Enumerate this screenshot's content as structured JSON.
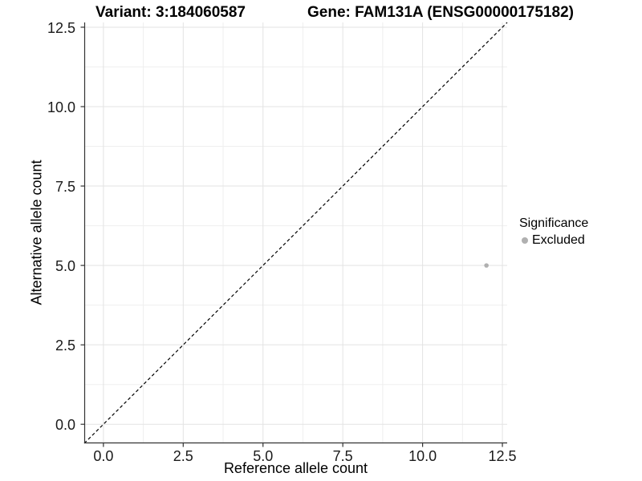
{
  "chart_data": {
    "type": "scatter",
    "title_left": "Variant: 3:184060587",
    "title_right": "Gene: FAM131A (ENSG00000175182)",
    "xlabel": "Reference allele count",
    "ylabel": "Alternative allele count",
    "xlim": [
      -0.6,
      12.65
    ],
    "ylim": [
      -0.6,
      12.65
    ],
    "x_ticks": [
      0.0,
      2.5,
      5.0,
      7.5,
      10.0,
      12.5
    ],
    "y_ticks": [
      0.0,
      2.5,
      5.0,
      7.5,
      10.0,
      12.5
    ],
    "x_tick_labels": [
      "0.0",
      "2.5",
      "5.0",
      "7.5",
      "10.0",
      "12.5"
    ],
    "y_tick_labels": [
      "0.0",
      "2.5",
      "5.0",
      "7.5",
      "10.0",
      "12.5"
    ],
    "grid": true,
    "grid_minor_midpoints": true,
    "identity_line": {
      "slope": 1,
      "intercept": 0,
      "style": "dashed",
      "color": "#000000"
    },
    "series": [
      {
        "name": "Excluded",
        "color": "#b0b0b0",
        "points": [
          {
            "x": 12,
            "y": 5
          }
        ]
      }
    ],
    "legend": {
      "title": "Significance",
      "position": "right",
      "items": [
        {
          "label": "Excluded",
          "color": "#b0b0b0"
        }
      ]
    },
    "colors": {
      "grid_major": "#e3e3e3",
      "grid_minor": "#efefef",
      "axis_line": "#333333",
      "tick_mark": "#333333",
      "point": "#b0b0b0"
    }
  }
}
